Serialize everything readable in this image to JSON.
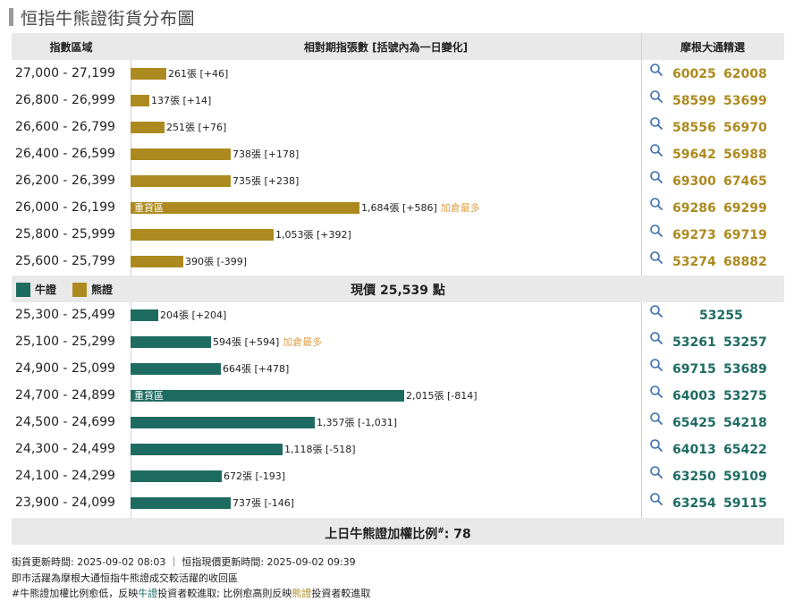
{
  "title": "恒指牛熊證街貨分布圖",
  "header": {
    "col_range": "指數區域",
    "col_contracts": "相對期指張數 [括號內為一日變化]",
    "col_picks": "摩根大通精選"
  },
  "colors": {
    "bear": "#ad8a1f",
    "bull": "#1e6b62"
  },
  "chart_data": {
    "type": "bar",
    "title": "恒指牛熊證街貨分布圖",
    "unit": "張",
    "heavy_label": "重貨區",
    "most_label": "加倉最多",
    "bear_rows": [
      {
        "range": "27,000 - 27,199",
        "value": 261,
        "change": "+46",
        "label": "261張 [+46]",
        "heavy": false,
        "most": false,
        "codes": [
          "60025",
          "62008"
        ]
      },
      {
        "range": "26,800 - 26,999",
        "value": 137,
        "change": "+14",
        "label": "137張 [+14]",
        "heavy": false,
        "most": false,
        "codes": [
          "58599",
          "53699"
        ]
      },
      {
        "range": "26,600 - 26,799",
        "value": 251,
        "change": "+76",
        "label": "251張 [+76]",
        "heavy": false,
        "most": false,
        "codes": [
          "58556",
          "56970"
        ]
      },
      {
        "range": "26,400 - 26,599",
        "value": 738,
        "change": "+178",
        "label": "738張 [+178]",
        "heavy": false,
        "most": false,
        "codes": [
          "59642",
          "56988"
        ]
      },
      {
        "range": "26,200 - 26,399",
        "value": 735,
        "change": "+238",
        "label": "735張 [+238]",
        "heavy": false,
        "most": false,
        "codes": [
          "69300",
          "67465"
        ]
      },
      {
        "range": "26,000 - 26,199",
        "value": 1684,
        "change": "+586",
        "label": "1,684張 [+586]",
        "heavy": true,
        "most": true,
        "codes": [
          "69286",
          "69299"
        ]
      },
      {
        "range": "25,800 - 25,999",
        "value": 1053,
        "change": "+392",
        "label": "1,053張 [+392]",
        "heavy": false,
        "most": false,
        "codes": [
          "69273",
          "69719"
        ]
      },
      {
        "range": "25,600 - 25,799",
        "value": 390,
        "change": "-399",
        "label": "390張 [-399]",
        "heavy": false,
        "most": false,
        "codes": [
          "53274",
          "68882"
        ]
      }
    ],
    "bull_rows": [
      {
        "range": "25,300 - 25,499",
        "value": 204,
        "change": "+204",
        "label": "204張 [+204]",
        "heavy": false,
        "most": false,
        "codes": [
          "53255"
        ]
      },
      {
        "range": "25,100 - 25,299",
        "value": 594,
        "change": "+594",
        "label": "594張 [+594]",
        "heavy": false,
        "most": true,
        "codes": [
          "53261",
          "53257"
        ]
      },
      {
        "range": "24,900 - 25,099",
        "value": 664,
        "change": "+478",
        "label": "664張 [+478]",
        "heavy": false,
        "most": false,
        "codes": [
          "69715",
          "53689"
        ]
      },
      {
        "range": "24,700 - 24,899",
        "value": 2015,
        "change": "-814",
        "label": "2,015張 [-814]",
        "heavy": true,
        "most": false,
        "codes": [
          "64003",
          "53275"
        ]
      },
      {
        "range": "24,500 - 24,699",
        "value": 1357,
        "change": "-1,031",
        "label": "1,357張 [-1,031]",
        "heavy": false,
        "most": false,
        "codes": [
          "65425",
          "54218"
        ]
      },
      {
        "range": "24,300 - 24,499",
        "value": 1118,
        "change": "-518",
        "label": "1,118張 [-518]",
        "heavy": false,
        "most": false,
        "codes": [
          "64013",
          "65422"
        ]
      },
      {
        "range": "24,100 - 24,299",
        "value": 672,
        "change": "-193",
        "label": "672張 [-193]",
        "heavy": false,
        "most": false,
        "codes": [
          "63250",
          "59109"
        ]
      },
      {
        "range": "23,900 - 24,099",
        "value": 737,
        "change": "-146",
        "label": "737張 [-146]",
        "heavy": false,
        "most": false,
        "codes": [
          "63254",
          "59115"
        ]
      }
    ]
  },
  "legend": {
    "bull": "牛證",
    "bear": "熊證"
  },
  "current_price": "現價 25,539 點",
  "footer": {
    "ratio_label": "上日牛熊證加權比例",
    "ratio_mark": "#",
    "ratio_value": ": 78"
  },
  "notes": {
    "line1": "街貨更新時間: 2025-09-02 08:03 ｜ 恒指現價更新時間: 2025-09-02 09:39",
    "line2": "即市活躍為摩根大通恒指牛熊證成交較活躍的收回區",
    "line3_a": "#牛熊證加權比例愈低，反映",
    "line3_bull": "牛證",
    "line3_b": "投資者較進取; 比例愈高則反映",
    "line3_bear": "熊證",
    "line3_c": "投資者較進取"
  }
}
